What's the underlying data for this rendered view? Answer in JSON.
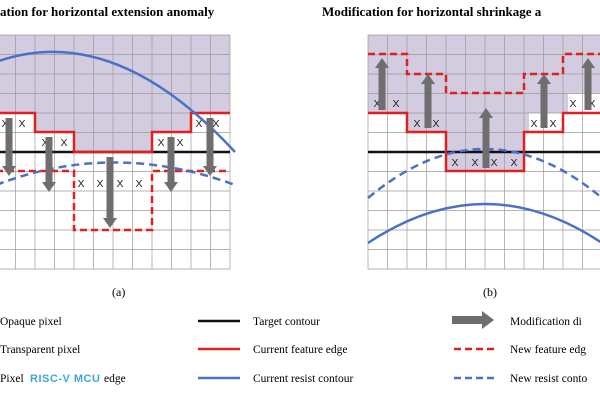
{
  "panel_a": {
    "title": "ation for horizontal extension anomaly",
    "caption": "(a)",
    "x_mark": "X"
  },
  "panel_b": {
    "title": "Modification for horizontal shrinkage a",
    "caption": "(b)",
    "x_mark": "X"
  },
  "legend": {
    "opaque_pixel": "Opaque pixel",
    "transparent_pixel": "Transparent pixel",
    "pixel_edge": "Pixel",
    "pixel_edge_suffix": "edge",
    "target_contour": "Target contour",
    "current_feature_edge": "Current feature edge",
    "current_resist_contour": "Current resist contour",
    "modification_direction": "Modification di",
    "new_feature_edge": "New feature edg",
    "new_resist_contour": "New resist conto"
  },
  "watermark": "RISC-V MCU",
  "colors": {
    "opaque": "#d3cbe0",
    "grid": "#9a9a9a",
    "red": "#e0201e",
    "blue": "#4a72c4",
    "black": "#111111",
    "arrow": "#6e6e6e",
    "watermark": "#3fa8d8"
  }
}
